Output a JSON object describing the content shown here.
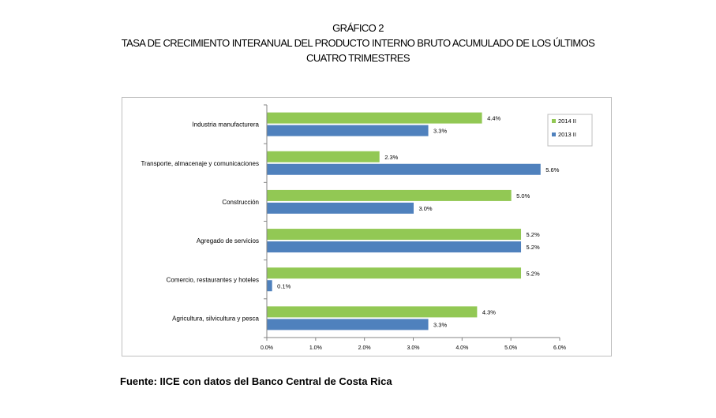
{
  "header": {
    "figure_label": "GRÁFICO 2",
    "title_line1": "TASA DE CRECIMIENTO INTERANUAL DEL PRODUCTO INTERNO BRUTO ACUMULADO DE LOS ÚLTIMOS",
    "title_line2": "CUATRO TRIMESTRES"
  },
  "source": "Fuente: IICE con datos del Banco Central de Costa Rica",
  "colors": {
    "series_2014": "#92c854",
    "series_2013": "#4f81bd",
    "axis": "#868686",
    "frame": "#bfbfbf"
  },
  "chart_data": {
    "type": "bar",
    "orientation": "horizontal",
    "categories": [
      "Industria manufacturera",
      "Transporte, almacenaje y comunicaciones",
      "Construcción",
      "Agregado de servicios",
      "Comercio, restaurantes y hoteles",
      "Agricultura, silvicultura y pesca"
    ],
    "series": [
      {
        "name": "2014 II",
        "values": [
          4.4,
          2.3,
          5.0,
          5.2,
          5.2,
          4.3
        ],
        "labels": [
          "4.4%",
          "2.3%",
          "5.0%",
          "5.2%",
          "5.2%",
          "4.3%"
        ]
      },
      {
        "name": "2013 II",
        "values": [
          3.3,
          5.6,
          3.0,
          5.2,
          0.1,
          3.3
        ],
        "labels": [
          "3.3%",
          "5.6%",
          "3.0%",
          "5.2%",
          "0.1%",
          "3.3%"
        ]
      }
    ],
    "xlim": [
      0,
      6
    ],
    "xticks": [
      "0.0%",
      "1.0%",
      "2.0%",
      "3.0%",
      "4.0%",
      "5.0%",
      "6.0%"
    ],
    "legend_position": "top-right",
    "grid": false
  }
}
